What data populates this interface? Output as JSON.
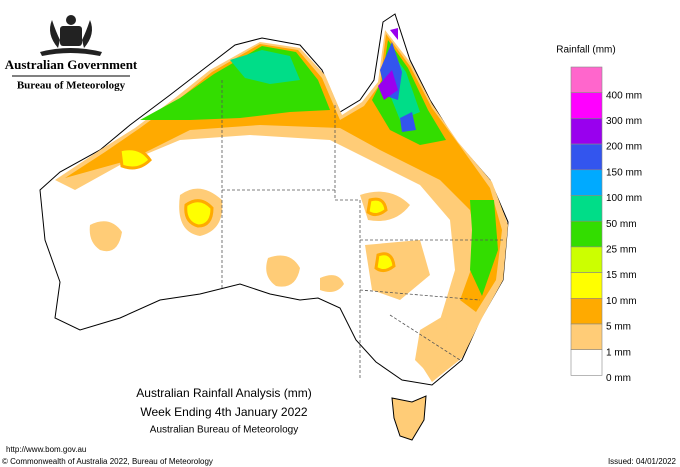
{
  "header": {
    "government": "Australian Government",
    "agency": "Bureau of Meteorology"
  },
  "legend": {
    "title": "Rainfall (mm)",
    "items": [
      {
        "label": "400 mm",
        "color": "#ff66cc"
      },
      {
        "label": "300 mm",
        "color": "#ff00ff"
      },
      {
        "label": "200 mm",
        "color": "#9900ee"
      },
      {
        "label": "150 mm",
        "color": "#3355ee"
      },
      {
        "label": "100 mm",
        "color": "#00aaff"
      },
      {
        "label": "50 mm",
        "color": "#00dd88"
      },
      {
        "label": "25 mm",
        "color": "#33dd00"
      },
      {
        "label": "15 mm",
        "color": "#ccff00"
      },
      {
        "label": "10 mm",
        "color": "#ffff00"
      },
      {
        "label": "5 mm",
        "color": "#ffaa00"
      },
      {
        "label": "1 mm",
        "color": "#ffcc77"
      },
      {
        "label": "0 mm",
        "color": "#ffffff"
      }
    ]
  },
  "caption": {
    "line1": "Australian Rainfall Analysis (mm)",
    "line2": "Week Ending 4th January 2022",
    "line3": "Australian Bureau of Meteorology"
  },
  "footer": {
    "url": "http://www.bom.gov.au",
    "copyright": "© Commonwealth of Australia 2022, Bureau of Meteorology",
    "issued": "Issued: 04/01/2022"
  }
}
